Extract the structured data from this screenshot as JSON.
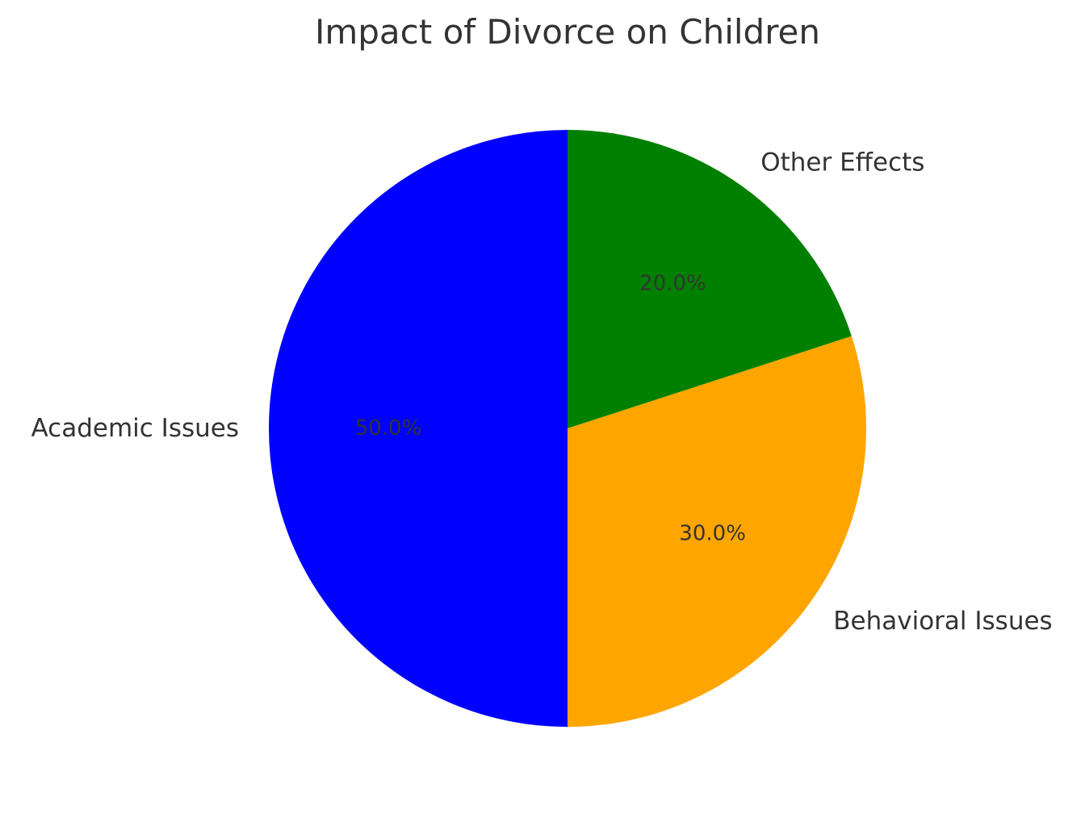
{
  "chart_data": {
    "type": "pie",
    "title": "Impact of Divorce on Children",
    "start_angle_deg": 90,
    "direction": "counterclockwise",
    "slices": [
      {
        "label": "Academic Issues",
        "value": 50,
        "pct_label": "50.0%",
        "color": "#0000ff"
      },
      {
        "label": "Behavioral Issues",
        "value": 30,
        "pct_label": "30.0%",
        "color": "#ffa500"
      },
      {
        "label": "Other Effects",
        "value": 20,
        "pct_label": "20.0%",
        "color": "#008000"
      }
    ],
    "legend": "none",
    "grid": false
  }
}
